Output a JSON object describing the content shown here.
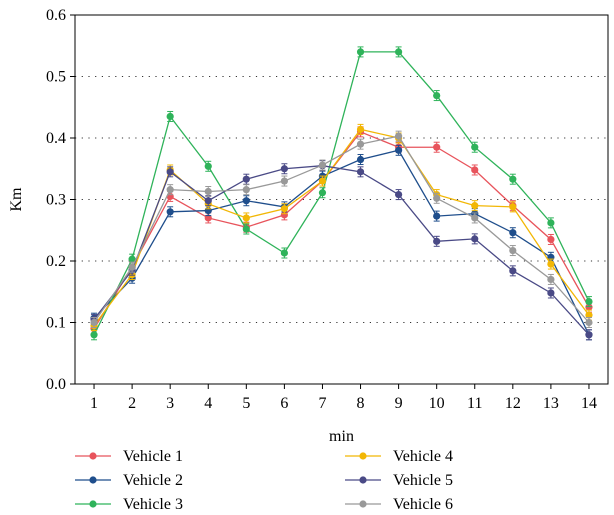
{
  "chart_data": {
    "type": "line",
    "title": "",
    "xlabel": "min",
    "ylabel": "Km",
    "x": [
      1,
      2,
      3,
      4,
      5,
      6,
      7,
      8,
      9,
      10,
      11,
      12,
      13,
      14
    ],
    "xlim": [
      0.5,
      14.5
    ],
    "ylim": [
      0.0,
      0.6
    ],
    "yticks": [
      "0.0",
      "0.1",
      "0.2",
      "0.3",
      "0.4",
      "0.5",
      "0.6"
    ],
    "grid": "horizontal dotted",
    "legend_position": "bottom",
    "series": [
      {
        "name": "Vehicle 1",
        "color": "#e8545c",
        "values": [
          0.09,
          0.19,
          0.305,
          0.27,
          0.255,
          0.275,
          0.33,
          0.41,
          0.385,
          0.385,
          0.348,
          0.29,
          0.235,
          0.125
        ]
      },
      {
        "name": "Vehicle 2",
        "color": "#1f4e8c",
        "values": [
          0.107,
          0.172,
          0.28,
          0.282,
          0.298,
          0.288,
          0.338,
          0.365,
          0.38,
          0.273,
          0.277,
          0.246,
          0.206,
          0.08
        ]
      },
      {
        "name": "Vehicle 3",
        "color": "#2fb35a",
        "values": [
          0.08,
          0.203,
          0.435,
          0.354,
          0.252,
          0.213,
          0.311,
          0.54,
          0.54,
          0.469,
          0.385,
          0.333,
          0.262,
          0.134
        ]
      },
      {
        "name": "Vehicle 4",
        "color": "#f2b705",
        "values": [
          0.095,
          0.178,
          0.348,
          0.293,
          0.27,
          0.285,
          0.33,
          0.414,
          0.4,
          0.308,
          0.29,
          0.288,
          0.195,
          0.112
        ]
      },
      {
        "name": "Vehicle 5",
        "color": "#4a4a86",
        "values": [
          0.105,
          0.185,
          0.345,
          0.298,
          0.333,
          0.35,
          0.355,
          0.345,
          0.308,
          0.232,
          0.236,
          0.184,
          0.148,
          0.08
        ]
      },
      {
        "name": "Vehicle 6",
        "color": "#999999",
        "values": [
          0.1,
          0.19,
          0.316,
          0.313,
          0.316,
          0.33,
          0.356,
          0.39,
          0.403,
          0.302,
          0.27,
          0.217,
          0.17,
          0.1
        ]
      }
    ]
  }
}
